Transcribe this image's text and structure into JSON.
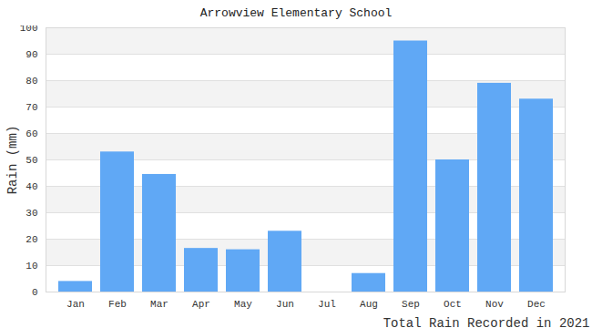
{
  "chart_data": {
    "type": "bar",
    "title": "Arrowview Elementary School",
    "x_label": "Total Rain Recorded in 2021",
    "y_label": "Rain (mm)",
    "categories": [
      "Jan",
      "Feb",
      "Mar",
      "Apr",
      "May",
      "Jun",
      "Jul",
      "Aug",
      "Sep",
      "Oct",
      "Nov",
      "Dec"
    ],
    "values": [
      4,
      53,
      44.5,
      16.5,
      16,
      23,
      0,
      7,
      95,
      50,
      79,
      73
    ],
    "color": "#60a8f5",
    "ylim": [
      0,
      100
    ],
    "yticks": [
      0,
      10,
      20,
      30,
      40,
      50,
      60,
      70,
      80,
      90,
      100
    ],
    "grid": true
  }
}
